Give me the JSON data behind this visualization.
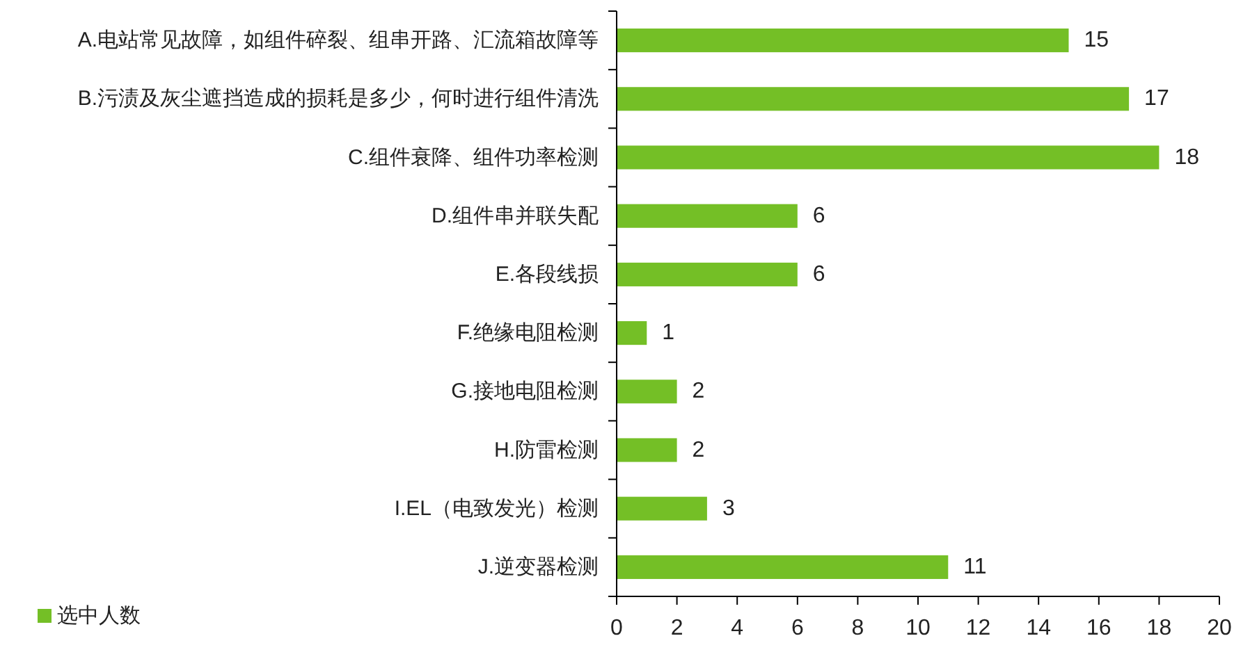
{
  "chart_data": {
    "type": "bar",
    "orientation": "horizontal",
    "categories": [
      "A.电站常见故障，如组件碎裂、组串开路、汇流箱故障等",
      "B.污渍及灰尘遮挡造成的损耗是多少，何时进行组件清洗",
      "C.组件衰降、组件功率检测",
      "D.组件串并联失配",
      "E.各段线损",
      "F.绝缘电阻检测",
      "G.接地电阻检测",
      "H.防雷检测",
      "I.EL（电致发光）检测",
      "J.逆变器检测"
    ],
    "series": [
      {
        "name": "选中人数",
        "color": "#74bf26",
        "values": [
          15,
          17,
          18,
          6,
          6,
          1,
          2,
          2,
          3,
          11
        ]
      }
    ],
    "xlim": [
      0,
      20
    ],
    "xticks": [
      0,
      2,
      4,
      6,
      8,
      10,
      12,
      14,
      16,
      18,
      20
    ],
    "data_labels": true,
    "legend": "bottom left"
  }
}
